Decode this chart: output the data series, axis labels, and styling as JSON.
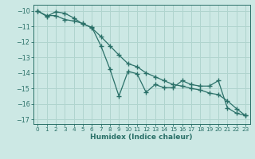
{
  "xlabel": "Humidex (Indice chaleur)",
  "ylabel": "",
  "background_color": "#cce8e4",
  "grid_color": "#b0d4ce",
  "line_color": "#2a7068",
  "xlim": [
    -0.5,
    23.5
  ],
  "ylim": [
    -17.3,
    -9.6
  ],
  "yticks": [
    -17,
    -16,
    -15,
    -14,
    -13,
    -12,
    -11,
    -10
  ],
  "xticks": [
    0,
    1,
    2,
    3,
    4,
    5,
    6,
    7,
    8,
    9,
    10,
    11,
    12,
    13,
    14,
    15,
    16,
    17,
    18,
    19,
    20,
    21,
    22,
    23
  ],
  "series1_x": [
    0,
    1,
    2,
    3,
    4,
    5,
    6,
    7,
    8,
    9,
    10,
    11,
    12,
    13,
    14,
    15,
    16,
    17,
    18,
    19,
    20,
    21,
    22,
    23
  ],
  "series1_y": [
    -10.0,
    -10.35,
    -10.05,
    -10.15,
    -10.45,
    -10.85,
    -11.05,
    -12.25,
    -13.75,
    -15.5,
    -13.9,
    -14.05,
    -15.25,
    -14.75,
    -14.95,
    -14.95,
    -14.5,
    -14.75,
    -14.85,
    -14.85,
    -14.5,
    -16.25,
    -16.6,
    -16.75
  ],
  "series2_x": [
    0,
    1,
    2,
    3,
    4,
    5,
    6,
    7,
    8,
    9,
    10,
    11,
    12,
    13,
    14,
    15,
    16,
    17,
    18,
    19,
    20,
    21,
    22,
    23
  ],
  "series2_y": [
    -10.0,
    -10.3,
    -10.3,
    -10.55,
    -10.65,
    -10.8,
    -11.1,
    -11.65,
    -12.25,
    -12.85,
    -13.4,
    -13.6,
    -14.0,
    -14.25,
    -14.5,
    -14.75,
    -14.85,
    -15.0,
    -15.1,
    -15.3,
    -15.4,
    -15.8,
    -16.3,
    -16.75
  ]
}
